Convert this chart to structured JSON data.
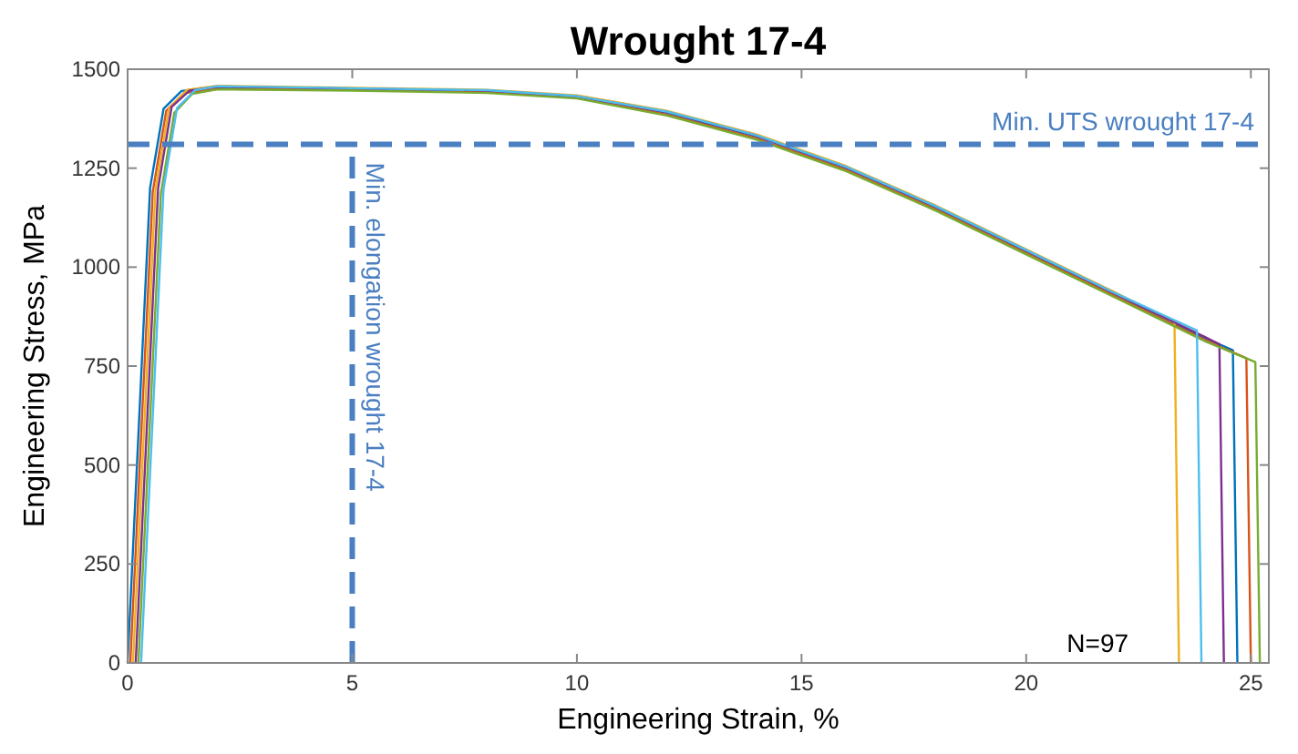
{
  "chart_data": {
    "type": "line",
    "title": "Wrought 17-4",
    "xlabel": "Engineering Strain, %",
    "ylabel": "Engineering Stress, MPa",
    "xlim": [
      0,
      25.4
    ],
    "ylim": [
      0,
      1500
    ],
    "xticks": [
      0,
      5,
      10,
      15,
      20,
      25
    ],
    "yticks": [
      0,
      250,
      500,
      750,
      1000,
      1250,
      1500
    ],
    "grid": false,
    "line_style": "solid",
    "series": [
      {
        "color": "#0072bd",
        "x": [
          0,
          0.5,
          0.8,
          1.2,
          2,
          5,
          8,
          10,
          12,
          14,
          16,
          18,
          20,
          22,
          24,
          24.6,
          24.7
        ],
        "values": [
          0,
          1200,
          1400,
          1445,
          1455,
          1450,
          1445,
          1430,
          1390,
          1330,
          1250,
          1150,
          1040,
          930,
          820,
          790,
          0
        ]
      },
      {
        "color": "#d95319",
        "x": [
          0.06,
          0.56,
          0.86,
          1.26,
          2,
          5,
          8,
          10,
          12,
          14,
          16,
          18,
          20,
          22,
          24,
          24.9,
          25
        ],
        "values": [
          0,
          1190,
          1395,
          1440,
          1450,
          1448,
          1442,
          1428,
          1385,
          1325,
          1245,
          1145,
          1035,
          925,
          815,
          770,
          0
        ]
      },
      {
        "color": "#edb120",
        "x": [
          0.12,
          0.62,
          0.92,
          1.32,
          2,
          5,
          8,
          10,
          12,
          14,
          16,
          18,
          20,
          22,
          23.3,
          23.4
        ],
        "values": [
          0,
          1195,
          1400,
          1448,
          1458,
          1453,
          1448,
          1434,
          1395,
          1335,
          1255,
          1155,
          1045,
          935,
          860,
          0
        ]
      },
      {
        "color": "#7e2f8e",
        "x": [
          0.18,
          0.68,
          0.98,
          1.38,
          2,
          5,
          8,
          10,
          12,
          14,
          16,
          18,
          20,
          22,
          24,
          24.3,
          24.4
        ],
        "values": [
          0,
          1200,
          1405,
          1446,
          1456,
          1451,
          1446,
          1431,
          1392,
          1332,
          1252,
          1152,
          1042,
          932,
          822,
          805,
          0
        ]
      },
      {
        "color": "#77ac30",
        "x": [
          0.24,
          0.74,
          1.04,
          1.44,
          2,
          5,
          8,
          10,
          12,
          14,
          16,
          18,
          20,
          22,
          24,
          25.1,
          25.2
        ],
        "values": [
          0,
          1185,
          1390,
          1438,
          1449,
          1446,
          1440,
          1426,
          1383,
          1322,
          1242,
          1142,
          1032,
          922,
          812,
          760,
          0
        ]
      },
      {
        "color": "#4dbeee",
        "x": [
          0.3,
          0.8,
          1.1,
          1.5,
          2,
          5,
          8,
          10,
          12,
          14,
          16,
          18,
          20,
          22,
          23.8,
          23.9
        ],
        "values": [
          0,
          1198,
          1402,
          1447,
          1457,
          1452,
          1447,
          1432,
          1393,
          1333,
          1253,
          1153,
          1043,
          933,
          840,
          0
        ]
      }
    ],
    "ref_lines": [
      {
        "axis": "y",
        "value": 1310,
        "label": "Min. UTS wrought 17-4",
        "color": "#4a7fc1",
        "line_style": "dashed"
      },
      {
        "axis": "x",
        "value": 5,
        "label": "Min. elongation wrought 17-4",
        "color": "#4a7fc1",
        "line_style": "dashed"
      }
    ],
    "annotations": [
      "N=97"
    ]
  }
}
